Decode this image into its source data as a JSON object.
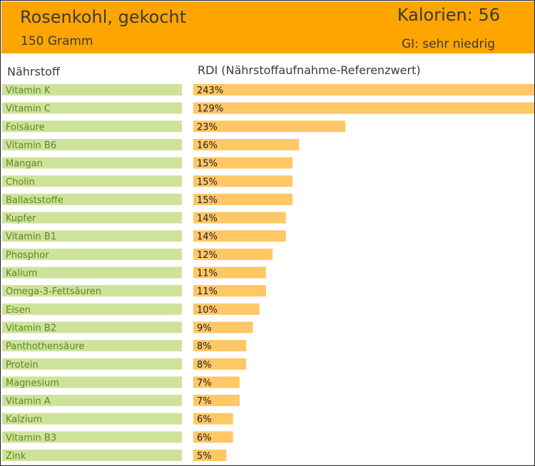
{
  "header": {
    "title": "Rosenkohl, gekocht",
    "subtitle": "150 Gramm",
    "calories": "Kalorien: 56",
    "gi": "GI: sehr niedrig"
  },
  "columns": {
    "nutrient": "Nährstoff",
    "rdi": "RDI (Nährstoffaufnahme-Referenzwert)"
  },
  "colors": {
    "header_bg": "#ffa500",
    "label_bar": "#cfe29b",
    "value_bar": "#ffc766",
    "label_text": "#5a8a1e"
  },
  "chart_data": {
    "type": "bar",
    "title": "Rosenkohl, gekocht",
    "xlabel": "RDI (Nährstoffaufnahme-Referenzwert)",
    "ylabel": "Nährstoff",
    "categories": [
      "Vitamin K",
      "Vitamin C",
      "Folsäure",
      "Vitamin B6",
      "Mangan",
      "Cholin",
      "Ballaststoffe",
      "Kupfer",
      "Vitamin B1",
      "Phosphor",
      "Kalium",
      "Omega-3-Fettsäuren",
      "Eisen",
      "Vitamin B2",
      "Panthothensäure",
      "Protein",
      "Magnesium",
      "Vitamin A",
      "Kalzium",
      "Vitamin B3",
      "Zink"
    ],
    "values": [
      243,
      129,
      23,
      16,
      15,
      15,
      15,
      14,
      14,
      12,
      11,
      11,
      10,
      9,
      8,
      8,
      7,
      7,
      6,
      6,
      5
    ],
    "value_labels": [
      "243%",
      "129%",
      "23%",
      "16%",
      "15%",
      "15%",
      "15%",
      "14%",
      "14%",
      "12%",
      "11%",
      "11%",
      "10%",
      "9%",
      "8%",
      "8%",
      "7%",
      "7%",
      "6%",
      "6%",
      "5%"
    ],
    "xlim": [
      0,
      50
    ],
    "unit": "%"
  }
}
